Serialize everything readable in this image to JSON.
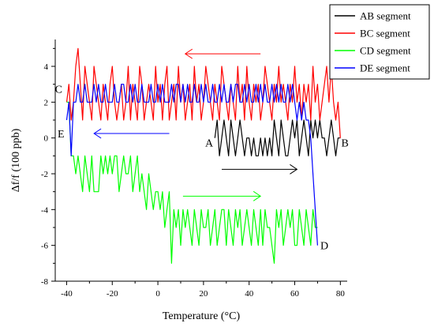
{
  "chart_data": {
    "type": "line",
    "xlabel": "Temperature (°C)",
    "ylabel": "Δf/f (100 ppb)",
    "xlim": [
      -45,
      83
    ],
    "ylim": [
      -8,
      5.5
    ],
    "x_ticks": [
      -40,
      -20,
      0,
      20,
      40,
      60,
      80
    ],
    "y_ticks": [
      -8,
      -6,
      -4,
      -2,
      0,
      2,
      4
    ],
    "x_tick_labels": [
      "-40",
      "-20",
      "0",
      "20",
      "40",
      "60",
      "80"
    ],
    "y_tick_labels": [
      "-8",
      "-6",
      "-4",
      "-2",
      "0",
      "2",
      "4"
    ],
    "legend_position": "top-right",
    "grid": false,
    "series": [
      {
        "name": "AB segment",
        "color": "#000000",
        "x": [
          25,
          26,
          27,
          28,
          29,
          30,
          31,
          32,
          33,
          34,
          35,
          36,
          37,
          38,
          39,
          40,
          41,
          42,
          43,
          44,
          45,
          46,
          47,
          48,
          49,
          50,
          51,
          52,
          53,
          54,
          55,
          56,
          57,
          58,
          59,
          60,
          61,
          62,
          63,
          64,
          65,
          66,
          67,
          68,
          69,
          70,
          71,
          72,
          73,
          74,
          75,
          76,
          77,
          78,
          79,
          80
        ],
        "y": [
          0,
          1,
          -1,
          0,
          1,
          0,
          -1,
          1,
          0,
          -1,
          0,
          1,
          0,
          -1,
          0,
          0,
          -1,
          0,
          -1,
          -1,
          0,
          -1,
          0,
          -1,
          0,
          -1,
          1,
          0,
          -1,
          1,
          0,
          -1,
          -1,
          0,
          1,
          0,
          1,
          -1,
          0,
          1,
          0,
          -1,
          1,
          0,
          1,
          0,
          1,
          0,
          0,
          -1,
          0,
          1,
          0,
          -1,
          0,
          0
        ]
      },
      {
        "name": "BC segment",
        "color": "#ff0000",
        "x": [
          80,
          79,
          78,
          77,
          76,
          75,
          74,
          73,
          72,
          71,
          70,
          69,
          68,
          67,
          66,
          65,
          64,
          63,
          62,
          61,
          60,
          59,
          58,
          57,
          56,
          55,
          54,
          53,
          52,
          51,
          50,
          49,
          48,
          47,
          46,
          45,
          44,
          43,
          42,
          41,
          40,
          39,
          38,
          37,
          36,
          35,
          34,
          33,
          32,
          31,
          30,
          29,
          28,
          27,
          26,
          25,
          24,
          23,
          22,
          21,
          20,
          19,
          18,
          17,
          16,
          15,
          14,
          13,
          12,
          11,
          10,
          9,
          8,
          7,
          6,
          5,
          4,
          3,
          2,
          1,
          0,
          -1,
          -2,
          -3,
          -4,
          -5,
          -6,
          -7,
          -8,
          -9,
          -10,
          -11,
          -12,
          -13,
          -14,
          -15,
          -16,
          -17,
          -18,
          -19,
          -20,
          -21,
          -22,
          -23,
          -24,
          -25,
          -26,
          -27,
          -28,
          -29,
          -30,
          -31,
          -32,
          -33,
          -34,
          -35,
          -36,
          -37,
          -38,
          -39,
          -40
        ],
        "y": [
          0,
          2,
          1,
          2,
          4,
          2,
          4,
          3,
          2,
          1,
          3,
          2,
          4,
          1,
          3,
          2,
          3,
          1,
          3,
          2,
          4,
          2,
          3,
          1,
          2,
          3,
          2,
          4,
          2,
          3,
          1,
          2,
          3,
          4,
          2,
          1,
          3,
          2,
          3,
          1,
          2,
          4,
          1,
          3,
          2,
          4,
          1,
          2,
          3,
          1,
          2,
          3,
          4,
          1,
          2,
          3,
          1,
          2,
          3,
          4,
          2,
          1,
          3,
          2,
          4,
          1,
          3,
          2,
          1,
          3,
          2,
          4,
          1,
          3,
          2,
          1,
          4,
          3,
          1,
          3,
          2,
          4,
          1,
          2,
          3,
          2,
          1,
          3,
          4,
          1,
          2,
          3,
          1,
          4,
          2,
          1,
          3,
          2,
          1,
          2,
          4,
          3,
          1,
          2,
          3,
          1,
          2,
          3,
          4,
          1,
          2,
          3,
          4,
          1,
          3,
          5,
          4,
          2,
          1,
          3,
          2
        ]
      },
      {
        "name": "CD segment",
        "color": "#00ff00",
        "x": [
          -40,
          -39,
          -38,
          -37,
          -36,
          -35,
          -34,
          -33,
          -32,
          -31,
          -30,
          -29,
          -28,
          -27,
          -26,
          -25,
          -24,
          -23,
          -22,
          -21,
          -20,
          -19,
          -18,
          -17,
          -16,
          -15,
          -14,
          -13,
          -12,
          -11,
          -10,
          -9,
          -8,
          -7,
          -6,
          -5,
          -4,
          -3,
          -2,
          -1,
          0,
          1,
          2,
          3,
          4,
          5,
          6,
          7,
          8,
          9,
          10,
          11,
          12,
          13,
          14,
          15,
          16,
          17,
          18,
          19,
          20,
          21,
          22,
          23,
          24,
          25,
          26,
          27,
          28,
          29,
          30,
          31,
          32,
          33,
          34,
          35,
          36,
          37,
          38,
          39,
          40,
          41,
          42,
          43,
          44,
          45,
          46,
          47,
          48,
          49,
          50,
          51,
          52,
          53,
          54,
          55,
          56,
          57,
          58,
          59,
          60,
          61,
          62,
          63,
          64,
          65,
          66,
          67,
          68,
          69,
          70
        ],
        "y": [
          2,
          2,
          -1,
          -1,
          -2,
          -1,
          -2,
          -3,
          -1,
          -2,
          -3,
          -1,
          -3,
          -3,
          -3,
          -1,
          -2,
          -1,
          -2,
          -1,
          -2,
          -1,
          -1,
          -3,
          -2,
          -1,
          -2,
          -2,
          -1,
          -3,
          -2,
          -1,
          -3,
          -2,
          -3,
          -4,
          -2,
          -3,
          -4,
          -3,
          -3,
          -4,
          -3,
          -5,
          -4,
          -3,
          -7,
          -4,
          -5,
          -4,
          -6,
          -4,
          -5,
          -4,
          -5,
          -6,
          -4,
          -5,
          -6,
          -4,
          -5,
          -5,
          -4,
          -6,
          -5,
          -4,
          -6,
          -5,
          -4,
          -4,
          -6,
          -4,
          -5,
          -6,
          -4,
          -5,
          -4,
          -6,
          -5,
          -4,
          -5,
          -6,
          -4,
          -5,
          -6,
          -4,
          -6,
          -4,
          -5,
          -5,
          -6,
          -7,
          -4,
          -5,
          -4,
          -6,
          -5,
          -4,
          -5,
          -4,
          -6,
          -6,
          -4,
          -5,
          -6,
          -4,
          -5,
          -6,
          -4,
          -5,
          -5
        ]
      },
      {
        "name": "DE segment",
        "color": "#0000ff",
        "x": [
          70,
          69,
          68,
          67,
          66,
          65,
          64,
          63,
          62,
          61,
          60,
          59,
          58,
          57,
          56,
          55,
          54,
          53,
          52,
          51,
          50,
          49,
          48,
          47,
          46,
          45,
          44,
          43,
          42,
          41,
          40,
          39,
          38,
          37,
          36,
          35,
          34,
          33,
          32,
          31,
          30,
          29,
          28,
          27,
          26,
          25,
          24,
          23,
          22,
          21,
          20,
          19,
          18,
          17,
          16,
          15,
          14,
          13,
          12,
          11,
          10,
          9,
          8,
          7,
          6,
          5,
          4,
          3,
          2,
          1,
          0,
          -1,
          -2,
          -3,
          -4,
          -5,
          -6,
          -7,
          -8,
          -9,
          -10,
          -11,
          -12,
          -13,
          -14,
          -15,
          -16,
          -17,
          -18,
          -19,
          -20,
          -21,
          -22,
          -23,
          -24,
          -25,
          -26,
          -27,
          -28,
          -29,
          -30,
          -31,
          -32,
          -33,
          -34,
          -35,
          -36,
          -37,
          -38,
          -39,
          -40
        ],
        "y": [
          -6,
          -4,
          -2,
          0,
          1,
          1,
          2,
          1,
          2,
          1,
          2,
          3,
          2,
          3,
          2,
          2,
          3,
          2,
          3,
          2,
          3,
          2,
          2,
          3,
          2,
          3,
          2,
          3,
          2,
          2,
          3,
          2,
          3,
          2,
          2,
          3,
          3,
          2,
          3,
          2,
          2,
          3,
          2,
          3,
          2,
          2,
          3,
          2,
          2,
          3,
          2,
          3,
          2,
          2,
          3,
          2,
          2,
          3,
          2,
          3,
          2,
          3,
          3,
          2,
          3,
          2,
          2,
          2,
          3,
          2,
          3,
          2,
          2,
          3,
          2,
          2,
          2,
          3,
          2,
          2,
          3,
          2,
          3,
          2,
          2,
          3,
          3,
          2,
          2,
          3,
          2,
          2,
          2,
          3,
          2,
          2,
          3,
          2,
          3,
          2,
          2,
          2,
          3,
          2,
          2,
          3,
          2,
          2,
          -1,
          2,
          1
        ]
      }
    ],
    "point_labels": [
      {
        "text": "A",
        "x": 22.5,
        "y": -0.25
      },
      {
        "text": "B",
        "x": 82,
        "y": -0.25
      },
      {
        "text": "C",
        "x": -43.5,
        "y": 2.75
      },
      {
        "text": "D",
        "x": 73,
        "y": -6
      },
      {
        "text": "E",
        "x": -42.5,
        "y": 0.25
      }
    ],
    "arrows": [
      {
        "color": "#ff0000",
        "from": [
          45,
          4.7
        ],
        "to": [
          12,
          4.7
        ]
      },
      {
        "color": "#0000ff",
        "from": [
          5,
          0.25
        ],
        "to": [
          -28,
          0.25
        ]
      },
      {
        "color": "#000000",
        "from": [
          28,
          -1.75
        ],
        "to": [
          61,
          -1.75
        ]
      },
      {
        "color": "#00ff00",
        "from": [
          11,
          -3.25
        ],
        "to": [
          45,
          -3.25
        ]
      }
    ]
  }
}
